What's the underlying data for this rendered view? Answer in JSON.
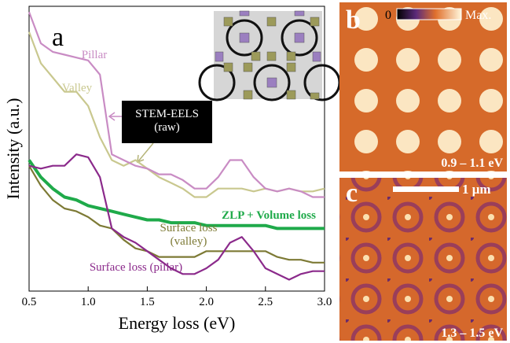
{
  "chart_data": {
    "type": "line",
    "panel_label": "a",
    "x_label": "Energy loss (eV)",
    "y_label": "Intensity (a.u.)",
    "xlim": [
      0.5,
      3.0
    ],
    "ylim": [
      0,
      100
    ],
    "xticks": [
      0.5,
      {
        "value": 1,
        "label": "1.0"
      },
      1.5,
      {
        "value": 2,
        "label": "2.0"
      },
      2.5,
      {
        "value": 3,
        "label": "3.0"
      }
    ],
    "annotation": "STEM-EELS (raw)",
    "x": [
      0.5,
      0.6,
      0.7,
      0.8,
      0.9,
      1.0,
      1.1,
      1.2,
      1.3,
      1.4,
      1.5,
      1.6,
      1.7,
      1.8,
      1.9,
      2.0,
      2.1,
      2.2,
      2.3,
      2.4,
      2.5,
      2.6,
      2.7,
      2.8,
      2.9,
      3.0
    ],
    "series": [
      {
        "name": "Pillar",
        "color": "#c98cc4",
        "values": [
          98,
          87,
          84,
          83,
          82,
          81,
          76,
          48,
          46,
          44,
          43,
          41,
          41,
          39,
          36,
          36,
          40,
          46,
          46,
          40,
          36,
          35,
          36,
          35,
          33,
          33
        ]
      },
      {
        "name": "Valley",
        "color": "#c9c88f",
        "values": [
          91,
          80,
          75,
          70,
          70,
          65,
          54,
          46,
          44,
          46,
          43,
          40,
          38,
          36,
          33,
          33,
          36,
          36,
          36,
          35,
          36,
          35,
          36,
          35,
          35,
          36
        ]
      },
      {
        "name": "ZLP + Volume loss",
        "color": "#1faa4a",
        "values": [
          46,
          40,
          36,
          33,
          32,
          30,
          29,
          28,
          27,
          26,
          25,
          25,
          24,
          24,
          24,
          23,
          23,
          23,
          23,
          23,
          23,
          22,
          22,
          22,
          22,
          22
        ]
      },
      {
        "name": "Surface loss (valley)",
        "color": "#7d7a35",
        "values": [
          44,
          37,
          32,
          29,
          28,
          26,
          23,
          22,
          18,
          15,
          14,
          12,
          12,
          12,
          12,
          14,
          14,
          14,
          14,
          14,
          14,
          12,
          11,
          11,
          10,
          10
        ]
      },
      {
        "name": "Surface loss (pillar)",
        "color": "#8b2a8b",
        "values": [
          44,
          43,
          44,
          44,
          48,
          47,
          40,
          22,
          19,
          17,
          14,
          11,
          8,
          6,
          6,
          8,
          11,
          17,
          19,
          14,
          8,
          6,
          4,
          6,
          7,
          7
        ]
      }
    ]
  },
  "panels": [
    {
      "label": "b",
      "caption": "0.9 – 1.1 eV",
      "colorbar_min": "0",
      "colorbar_max": "Max."
    },
    {
      "label": "c",
      "caption": "1.3 – 1.5 eV",
      "scale_bar": "1 μm"
    }
  ]
}
